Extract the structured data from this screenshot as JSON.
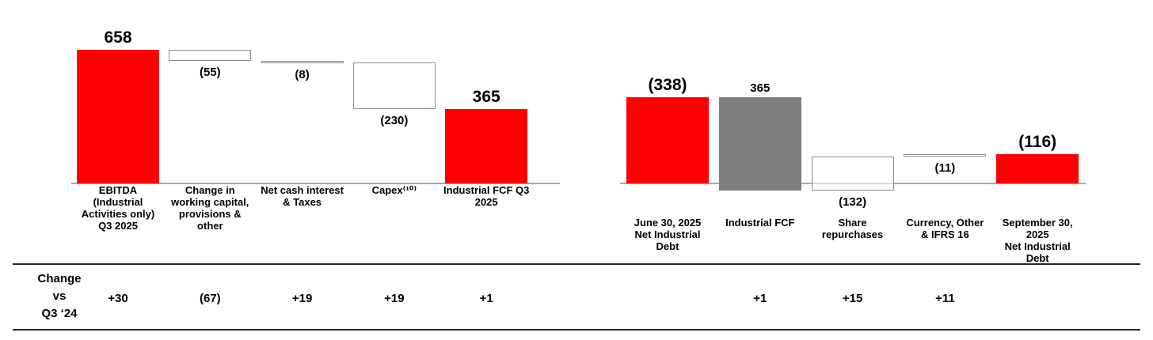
{
  "change_header": {
    "line1": "Change",
    "line2": "vs",
    "line3": "Q3 ‘24"
  },
  "colors": {
    "red": "#fe0000",
    "gray": "#7e7e7e",
    "outline_border": "#8a8a8a",
    "axis": "#a9a9a9",
    "rule": "#262626",
    "text": "#000000"
  },
  "chart_data": [
    {
      "type": "bar",
      "subtype": "waterfall",
      "title": "",
      "xlabel": "",
      "ylabel": "",
      "grid": false,
      "legend": false,
      "axis_baseline_value": 0,
      "bars": [
        {
          "category": "EBITDA\n(Industrial\nActivities only)\nQ3 2025",
          "display": "658",
          "value": 658,
          "from": 0,
          "to": 658,
          "style": "red",
          "label_position": "above",
          "emphasis": true,
          "change_vs_q3_24": "+30"
        },
        {
          "category": "Change in\nworking capital,\nprovisions &\nother",
          "display": "(55)",
          "value": -55,
          "from": 658,
          "to": 603,
          "style": "outline",
          "label_position": "below",
          "emphasis": false,
          "change_vs_q3_24": "(67)"
        },
        {
          "category": "Net cash interest\n& Taxes",
          "display": "(8)",
          "value": -8,
          "from": 603,
          "to": 595,
          "style": "outline",
          "label_position": "below",
          "emphasis": false,
          "change_vs_q3_24": "+19"
        },
        {
          "category": "Capex⁽¹⁰⁾",
          "display": "(230)",
          "value": -230,
          "from": 595,
          "to": 365,
          "style": "outline",
          "label_position": "below",
          "emphasis": false,
          "change_vs_q3_24": "+19"
        },
        {
          "category": "Industrial FCF Q3\n2025",
          "display": "365",
          "value": 365,
          "from": 0,
          "to": 365,
          "style": "red",
          "label_position": "above",
          "emphasis": true,
          "change_vs_q3_24": "+1"
        }
      ]
    },
    {
      "type": "bar",
      "subtype": "waterfall",
      "title": "",
      "xlabel": "",
      "ylabel": "",
      "grid": false,
      "legend": false,
      "axis_baseline_value": 0,
      "bars": [
        {
          "category": "June 30, 2025\nNet Industrial\nDebt",
          "display": "(338)",
          "value": -338,
          "from": 0,
          "to": 338,
          "style": "red",
          "label_position": "above",
          "emphasis": true,
          "change_vs_q3_24": ""
        },
        {
          "category": "Industrial FCF",
          "display": "365",
          "value": 365,
          "from": 338,
          "to": -27,
          "style": "gray",
          "label_position": "above",
          "emphasis": false,
          "change_vs_q3_24": "+1"
        },
        {
          "category": "Share\nrepurchases",
          "display": "(132)",
          "value": -132,
          "from": -27,
          "to": 105,
          "style": "outline",
          "label_position": "below",
          "emphasis": false,
          "change_vs_q3_24": "+15"
        },
        {
          "category": "Currency, Other\n& IFRS 16",
          "display": "(11)",
          "value": -11,
          "from": 105,
          "to": 116,
          "style": "outline",
          "label_position": "below",
          "emphasis": false,
          "change_vs_q3_24": "+11"
        },
        {
          "category": "September 30,\n2025\nNet Industrial\nDebt",
          "display": "(116)",
          "value": -116,
          "from": 0,
          "to": 116,
          "style": "red",
          "label_position": "above",
          "emphasis": true,
          "change_vs_q3_24": ""
        }
      ]
    }
  ]
}
